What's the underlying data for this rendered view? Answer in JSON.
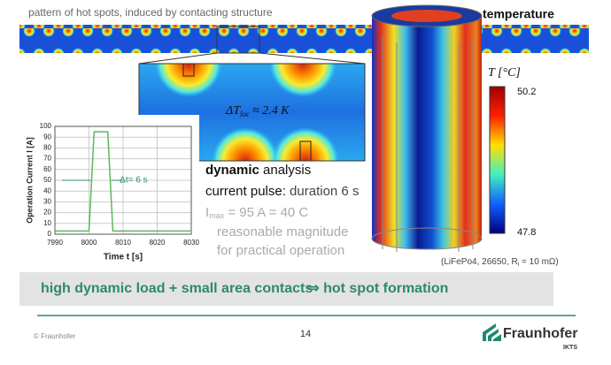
{
  "header": {
    "caption": "pattern of hot spots, induced by contacting structure",
    "temperature_title": "temperature"
  },
  "zoom": {
    "delta": "ΔT",
    "delta_sub": "loc",
    "delta_rest": "≈ 2.4 K"
  },
  "current_chart": {
    "type": "line",
    "x_label": "Time t [s]",
    "y_label": "Operation Current I [A]",
    "annotation": "Δt= 6 s",
    "x": [
      7990,
      8000,
      8001.5,
      8005.5,
      8007,
      8030
    ],
    "values": [
      3,
      3,
      95,
      95,
      3,
      3
    ],
    "color": "#5cb85c",
    "xlim": [
      7990,
      8030
    ],
    "xticks": [
      7990,
      8000,
      8010,
      8020,
      8030
    ],
    "ylim": [
      0,
      100
    ],
    "yticks": [
      0,
      10,
      20,
      30,
      40,
      50,
      60,
      70,
      80,
      90,
      100
    ],
    "grid": true
  },
  "analysis": {
    "dynamic": "dynamic",
    "analysis": " analysis",
    "pulse_label": "current pulse:",
    "pulse_value": " duration 6 s",
    "imax": "I",
    "imax_sub": "max",
    "imax_rest": " = 95 A = 40 C",
    "line1": "reasonable magnitude",
    "line2": "for practical operation"
  },
  "colorbar": {
    "label": "T [°C]",
    "max": 50.2,
    "min": 47.8
  },
  "cell_note": {
    "pre": "(LiFePo4, 26650, R",
    "sub": "i",
    "post": " = 10 mΩ)"
  },
  "banner": {
    "left": "high dynamic load + small area contacts",
    "right": "⇒ hot spot formation"
  },
  "footer": {
    "copyright": "© Fraunhofer",
    "page": 14,
    "logo": "Fraunhofer",
    "logo_sub": "IKTS"
  }
}
